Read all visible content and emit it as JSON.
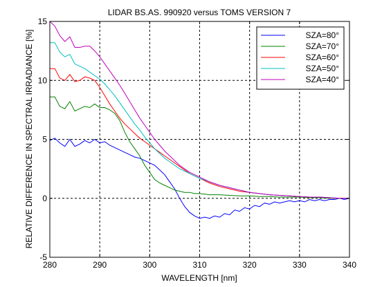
{
  "chart_data": {
    "type": "line",
    "title": "LIDAR BS.AS. 990920 versus TOMS VERSION 7",
    "xlabel": "WAVELENGTH [nm]",
    "ylabel": "RELATIVE DIFFERENCE IN SPECTRAL IRRADIANCE [%]",
    "xlim": [
      280,
      340
    ],
    "ylim": [
      -5,
      15
    ],
    "xticks": [
      280,
      290,
      300,
      310,
      320,
      330,
      340
    ],
    "yticks": [
      -5,
      0,
      5,
      10,
      15
    ],
    "x_tick_labels": [
      "280",
      "290",
      "300",
      "310",
      "320",
      "330",
      "340"
    ],
    "y_tick_labels": [
      "-5",
      "0",
      "5",
      "10",
      "15"
    ],
    "grid": true,
    "grid_style": "dashed",
    "legend_position": "top-right",
    "series": [
      {
        "name": "SZA=80°",
        "color": "#0000ff",
        "x": [
          280,
          281,
          282,
          283,
          284,
          285,
          286,
          287,
          288,
          289,
          290,
          291,
          292,
          293,
          294,
          295,
          296,
          297,
          298,
          299,
          300,
          301,
          302,
          303,
          304,
          305,
          306,
          307,
          308,
          309,
          310,
          311,
          312,
          313,
          314,
          315,
          316,
          317,
          318,
          319,
          320,
          321,
          322,
          323,
          324,
          325,
          326,
          327,
          328,
          329,
          330,
          331,
          332,
          333,
          334,
          335,
          336,
          337,
          338,
          339,
          340
        ],
        "y": [
          4.9,
          5.1,
          4.7,
          4.4,
          5.0,
          4.4,
          4.6,
          4.9,
          4.7,
          5.0,
          4.7,
          4.8,
          4.5,
          4.3,
          4.1,
          3.9,
          3.7,
          3.5,
          3.4,
          3.2,
          3.0,
          2.8,
          2.4,
          2.0,
          1.4,
          0.8,
          0.0,
          -0.7,
          -1.2,
          -1.5,
          -1.7,
          -1.6,
          -1.7,
          -1.5,
          -1.6,
          -1.3,
          -1.4,
          -1.0,
          -1.1,
          -0.8,
          -0.9,
          -0.6,
          -0.7,
          -0.4,
          -0.5,
          -0.3,
          -0.4,
          -0.3,
          -0.2,
          -0.3,
          -0.2,
          -0.3,
          -0.1,
          -0.2,
          -0.1,
          -0.2,
          -0.1,
          -0.1,
          0.0,
          -0.1,
          0.0
        ]
      },
      {
        "name": "SZA=70°",
        "color": "#008000",
        "x": [
          280,
          281,
          282,
          283,
          284,
          285,
          286,
          287,
          288,
          289,
          290,
          291,
          292,
          293,
          294,
          295,
          296,
          297,
          298,
          299,
          300,
          301,
          302,
          303,
          304,
          305,
          306,
          307,
          308,
          309,
          310,
          312,
          314,
          316,
          318,
          320,
          322,
          324,
          326,
          328,
          330,
          332,
          334,
          336,
          338,
          340
        ],
        "y": [
          8.6,
          8.6,
          7.8,
          7.6,
          8.2,
          7.4,
          7.6,
          7.8,
          7.7,
          8.0,
          7.7,
          7.7,
          7.5,
          7.2,
          6.6,
          5.6,
          4.8,
          4.2,
          3.6,
          2.8,
          2.2,
          1.6,
          1.3,
          1.1,
          0.9,
          0.7,
          0.6,
          0.5,
          0.5,
          0.4,
          0.4,
          0.3,
          0.3,
          0.25,
          0.2,
          0.2,
          0.15,
          0.15,
          0.1,
          0.1,
          0.1,
          0.05,
          0.05,
          0.0,
          0.0,
          0.0
        ]
      },
      {
        "name": "SZA=60°",
        "color": "#ff0000",
        "x": [
          280,
          281,
          282,
          283,
          284,
          285,
          286,
          287,
          288,
          289,
          290,
          291,
          292,
          293,
          294,
          295,
          296,
          297,
          298,
          299,
          300,
          301,
          302,
          303,
          304,
          305,
          306,
          307,
          308,
          309,
          310,
          312,
          314,
          316,
          318,
          320,
          322,
          324,
          326,
          328,
          330,
          332,
          334,
          336,
          338,
          340
        ],
        "y": [
          11.0,
          11.0,
          10.2,
          10.0,
          10.5,
          9.9,
          10.0,
          10.3,
          10.2,
          10.0,
          9.4,
          8.7,
          8.0,
          7.4,
          6.8,
          6.3,
          5.9,
          5.5,
          5.1,
          4.8,
          4.5,
          4.2,
          3.9,
          3.6,
          3.3,
          3.0,
          2.7,
          2.4,
          2.1,
          1.9,
          1.7,
          1.3,
          1.0,
          0.8,
          0.6,
          0.5,
          0.4,
          0.3,
          0.25,
          0.2,
          0.15,
          0.1,
          0.1,
          0.05,
          0.0,
          0.0
        ]
      },
      {
        "name": "SZA=50°",
        "color": "#00bfbf",
        "x": [
          280,
          281,
          282,
          283,
          284,
          285,
          286,
          287,
          288,
          289,
          290,
          291,
          292,
          293,
          294,
          295,
          296,
          297,
          298,
          299,
          300,
          301,
          302,
          303,
          304,
          305,
          306,
          307,
          308,
          309,
          310,
          312,
          314,
          316,
          318,
          320,
          322,
          324,
          326,
          328,
          330,
          332,
          334,
          336,
          338,
          340
        ],
        "y": [
          13.2,
          13.2,
          12.4,
          12.0,
          12.2,
          11.4,
          11.2,
          11.0,
          10.7,
          10.4,
          10.1,
          9.7,
          9.2,
          8.7,
          8.1,
          7.5,
          6.9,
          6.3,
          5.8,
          5.2,
          4.7,
          4.2,
          3.8,
          3.4,
          3.1,
          2.8,
          2.5,
          2.3,
          2.1,
          1.9,
          1.7,
          1.4,
          1.1,
          0.9,
          0.7,
          0.5,
          0.4,
          0.3,
          0.25,
          0.2,
          0.15,
          0.1,
          0.1,
          0.05,
          0.0,
          0.0
        ]
      },
      {
        "name": "SZA=40°",
        "color": "#bf00bf",
        "x": [
          280,
          281,
          282,
          283,
          284,
          285,
          286,
          287,
          288,
          289,
          290,
          291,
          292,
          293,
          294,
          295,
          296,
          297,
          298,
          299,
          300,
          301,
          302,
          303,
          304,
          305,
          306,
          307,
          308,
          309,
          310,
          312,
          314,
          316,
          318,
          320,
          322,
          324,
          326,
          328,
          330,
          332,
          334,
          336,
          338,
          340
        ],
        "y": [
          15.0,
          14.6,
          13.8,
          13.3,
          13.7,
          12.8,
          12.8,
          12.9,
          12.9,
          12.5,
          12.0,
          11.4,
          10.8,
          10.2,
          9.6,
          8.9,
          8.2,
          7.5,
          6.8,
          6.2,
          5.6,
          5.0,
          4.5,
          4.0,
          3.6,
          3.2,
          2.8,
          2.5,
          2.2,
          2.0,
          1.8,
          1.4,
          1.1,
          0.9,
          0.7,
          0.5,
          0.4,
          0.3,
          0.25,
          0.2,
          0.15,
          0.1,
          0.1,
          0.05,
          0.0,
          0.0
        ]
      }
    ]
  }
}
